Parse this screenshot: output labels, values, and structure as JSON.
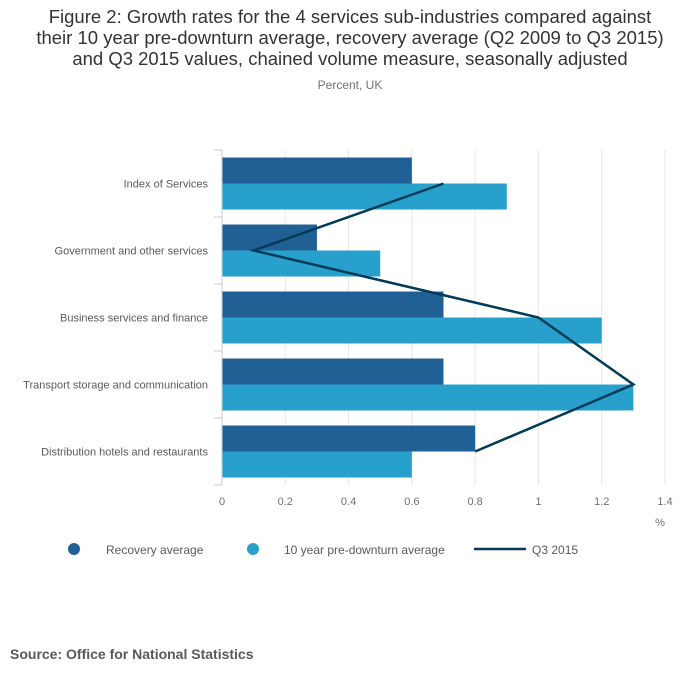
{
  "chart_data": {
    "type": "bar",
    "orientation": "horizontal",
    "title": "Figure 2: Growth rates for the 4 services sub-industries compared against their 10 year pre-downturn average, recovery average (Q2 2009 to Q3 2015) and Q3 2015 values, chained volume measure, seasonally adjusted",
    "title_lines": [
      "Figure 2: Growth rates for the 4 services sub-industries compared against",
      "their 10 year pre-downturn average, recovery average (Q2 2009 to Q3 2015)",
      "and Q3 2015 values, chained volume measure, seasonally adjusted"
    ],
    "subtitle": "Percent, UK",
    "xlabel": "%",
    "categories": [
      "Index of Services",
      "Government and other services",
      "Business services and finance",
      "Transport storage and communication",
      "Distribution hotels and restaurants"
    ],
    "series": [
      {
        "name": "Recovery average",
        "type": "bar",
        "color": "#206095",
        "values": [
          0.6,
          0.3,
          0.7,
          0.7,
          0.8
        ]
      },
      {
        "name": "10 year pre-downturn average",
        "type": "bar",
        "color": "#27a0cc",
        "values": [
          0.9,
          0.5,
          1.2,
          1.3,
          0.6
        ]
      },
      {
        "name": "Q3 2015",
        "type": "line",
        "color": "#003c57",
        "values": [
          0.7,
          0.1,
          1.0,
          1.3,
          0.8
        ]
      }
    ],
    "xlim": [
      0,
      1.4
    ],
    "xticks": [
      0,
      0.2,
      0.4,
      0.6,
      0.8,
      1,
      1.2,
      1.4
    ],
    "xtick_labels": [
      "0",
      "0.2",
      "0.4",
      "0.6",
      "0.8",
      "1",
      "1.2",
      "1.4"
    ],
    "grid": true,
    "legend_position": "bottom-left"
  },
  "source": "Source: Office for National Statistics"
}
